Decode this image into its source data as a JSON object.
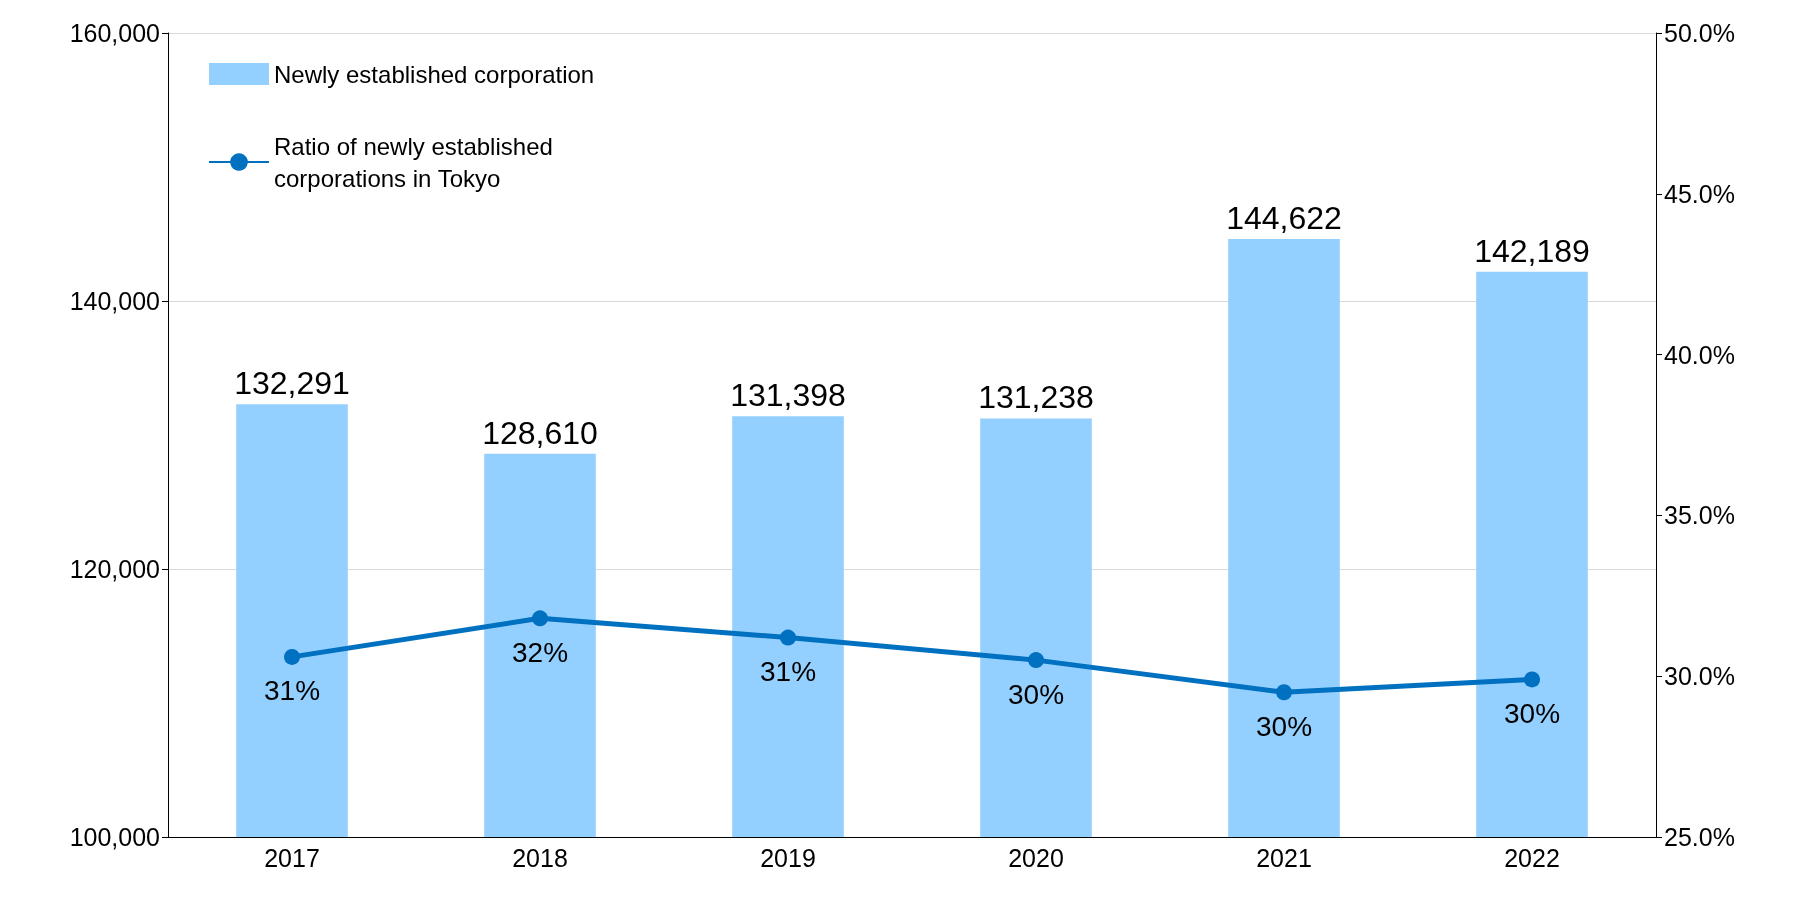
{
  "chart_data": {
    "type": "bar",
    "categories": [
      "2017",
      "2018",
      "2019",
      "2020",
      "2021",
      "2022"
    ],
    "series": [
      {
        "name": "Newly established corporation",
        "color": "#93d0ff",
        "values": [
          132291,
          128610,
          131398,
          131238,
          144622,
          142189
        ],
        "value_labels": [
          "132,291",
          "128,610",
          "131,398",
          "131,238",
          "144,622",
          "142,189"
        ]
      },
      {
        "name": "Ratio of newly established corporations in Tokyo",
        "type": "line",
        "axis": "y2",
        "color": "#0070c0",
        "values": [
          30.6,
          31.8,
          31.2,
          30.5,
          29.5,
          29.9
        ],
        "value_labels": [
          "31%",
          "32%",
          "31%",
          "30%",
          "30%",
          "30%"
        ]
      }
    ],
    "ylim": [
      100000,
      160000
    ],
    "yticks": [
      {
        "value": 100000,
        "label": "100,000"
      },
      {
        "value": 120000,
        "label": "120,000"
      },
      {
        "value": 140000,
        "label": "140,000"
      },
      {
        "value": 160000,
        "label": "160,000"
      }
    ],
    "y2lim": [
      25,
      50
    ],
    "y2ticks": [
      {
        "value": 25,
        "label": "25.0%"
      },
      {
        "value": 30,
        "label": "30.0%"
      },
      {
        "value": 35,
        "label": "35.0%"
      },
      {
        "value": 40,
        "label": "40.0%"
      },
      {
        "value": 45,
        "label": "45.0%"
      },
      {
        "value": 50,
        "label": "50.0%"
      }
    ],
    "grid": "y",
    "legend": "top left",
    "marker": "circle",
    "line_style": "solid"
  }
}
